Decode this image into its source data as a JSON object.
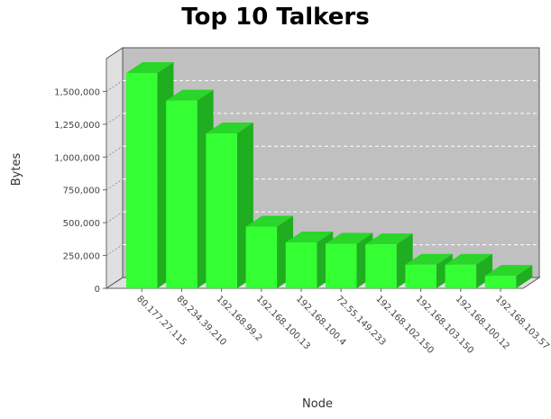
{
  "chart_data": {
    "type": "bar",
    "title": "Top 10 Talkers",
    "xlabel": "Node",
    "ylabel": "Bytes",
    "categories": [
      "80.177.27.115",
      "89.234.39.210",
      "192.168.99.2",
      "192.168.100.13",
      "192.168.100.4",
      "72.55.149.233",
      "192.168.102.150",
      "192.168.103.150",
      "192.168.100.12",
      "192.168.103.57"
    ],
    "series": [
      {
        "values": [
          1640000,
          1430000,
          1180000,
          470000,
          350000,
          340000,
          335000,
          180000,
          180000,
          95000
        ]
      }
    ],
    "ylim": [
      0,
      1750000
    ],
    "yticks": [
      0,
      250000,
      500000,
      750000,
      1000000,
      1250000,
      1500000
    ],
    "ytick_labels": [
      "0",
      "250,000",
      "500,000",
      "750,000",
      "1,000,000",
      "1,250,000",
      "1,500,000"
    ],
    "grid": true,
    "colors": {
      "bar_front": "#33ff33",
      "bar_top": "#29d629",
      "bar_side": "#1fae1f",
      "plot_back": "#c0c0c0",
      "plot_wall": "#e0e0e0"
    }
  }
}
